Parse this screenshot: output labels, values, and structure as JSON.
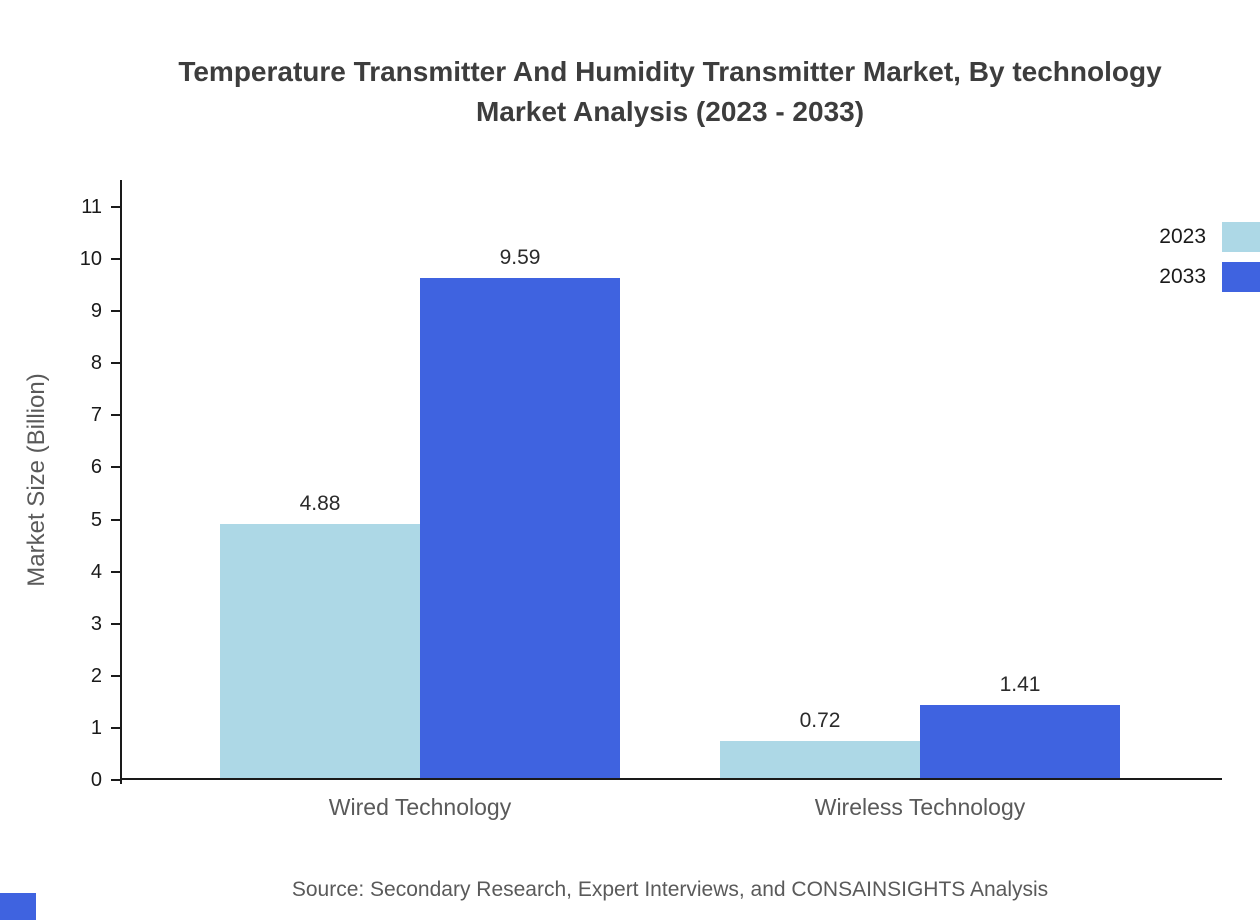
{
  "title_lines": [
    "Temperature Transmitter And Humidity Transmitter Market, By technology",
    "Market Analysis (2023 - 2033)"
  ],
  "chart_data": {
    "type": "bar",
    "title": "Temperature Transmitter And Humidity Transmitter Market, By technology Market Analysis (2023 - 2033)",
    "categories": [
      "Wired Technology",
      "Wireless Technology"
    ],
    "series": [
      {
        "name": "2023",
        "color": "#add8e6",
        "values": [
          4.88,
          0.72
        ]
      },
      {
        "name": "2033",
        "color": "#3f63e0",
        "values": [
          9.59,
          1.41
        ]
      }
    ],
    "xlabel": "",
    "ylabel": "Market Size (Billion)",
    "ylim": [
      0,
      11
    ],
    "yticks": [
      0,
      1,
      2,
      3,
      4,
      5,
      6,
      7,
      8,
      9,
      10,
      11
    ],
    "legend_position": "top-right",
    "grid": false,
    "value_labels": true
  },
  "source_note": "Source: Secondary Research, Expert Interviews, and CONSAINSIGHTS Analysis",
  "colors": {
    "series_2023": "#add8e6",
    "series_2033": "#3f63e0",
    "axis": "#1a1a1a",
    "title_text": "#3d3d3d",
    "muted_text": "#5a5a5a"
  }
}
